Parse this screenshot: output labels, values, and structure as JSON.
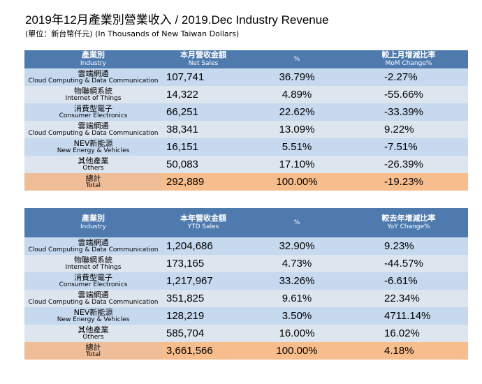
{
  "title": "2019年12月產業別營業收入 / 2019.Dec Industry Revenue",
  "unit": "(單位：新台幣仟元) (In Thousands of New Taiwan Dollars)",
  "monthly": {
    "headers": [
      {
        "zh": "產業別",
        "en": "Industry"
      },
      {
        "zh": "本月營收金額",
        "en": "Net Sales"
      },
      {
        "zh": "",
        "en": "%"
      },
      {
        "zh": "較上月增減比率",
        "en": "MoM Change%"
      }
    ],
    "rows": [
      {
        "zh": "雲端網通",
        "en": "Cloud Computing & Data Communication",
        "sales": "107,741",
        "pct": "36.79%",
        "chg": "-2.27%"
      },
      {
        "zh": "物聯網系統",
        "en": "Internet of Things",
        "sales": "14,322",
        "pct": "4.89%",
        "chg": "-55.66%"
      },
      {
        "zh": "消費型電子",
        "en": "Consumer Electronics",
        "sales": "66,251",
        "pct": "22.62%",
        "chg": "-33.39%"
      },
      {
        "zh": "雲端網通",
        "en": "Cloud Computing & Data Communication",
        "sales": "38,341",
        "pct": "13.09%",
        "chg": "9.22%"
      },
      {
        "zh": "NEV新能源",
        "en": "New Energy & Vehicles",
        "sales": "16,151",
        "pct": "5.51%",
        "chg": "-7.51%"
      },
      {
        "zh": "其他產業",
        "en": "Others",
        "sales": "50,083",
        "pct": "17.10%",
        "chg": "-26.39%"
      },
      {
        "zh": "總計",
        "en": "Total",
        "sales": "292,889",
        "pct": "100.00%",
        "chg": "-19.23%"
      }
    ]
  },
  "ytd": {
    "headers": [
      {
        "zh": "產業別",
        "en": "Industry"
      },
      {
        "zh": "本年營收金額",
        "en": "YTD Sales"
      },
      {
        "zh": "",
        "en": "%"
      },
      {
        "zh": "較去年增減比率",
        "en": "YoY Change%"
      }
    ],
    "rows": [
      {
        "zh": "雲端網通",
        "en": "Cloud Computing & Data Communication",
        "sales": "1,204,686",
        "pct": "32.90%",
        "chg": "9.23%"
      },
      {
        "zh": "物聯網系統",
        "en": "Internet of Things",
        "sales": "173,165",
        "pct": "4.73%",
        "chg": "-44.57%"
      },
      {
        "zh": "消費型電子",
        "en": "Consumer Electronics",
        "sales": "1,217,967",
        "pct": "33.26%",
        "chg": "-6.61%"
      },
      {
        "zh": "雲端網通",
        "en": "Cloud Computing & Data Communication",
        "sales": "351,825",
        "pct": "9.61%",
        "chg": "22.34%"
      },
      {
        "zh": "NEV新能源",
        "en": "New Energy & Vehicles",
        "sales": "128,219",
        "pct": "3.50%",
        "chg": "4711.14%"
      },
      {
        "zh": "其他產業",
        "en": "Others",
        "sales": "585,704",
        "pct": "16.00%",
        "chg": "16.02%"
      },
      {
        "zh": "總計",
        "en": "Total",
        "sales": "3,661,566",
        "pct": "100.00%",
        "chg": "4.18%"
      }
    ]
  },
  "colors": {
    "header": "#4e7aae",
    "row_a": "#c6d9ef",
    "row_b": "#dde5ef",
    "total": "#f8bd8c"
  }
}
